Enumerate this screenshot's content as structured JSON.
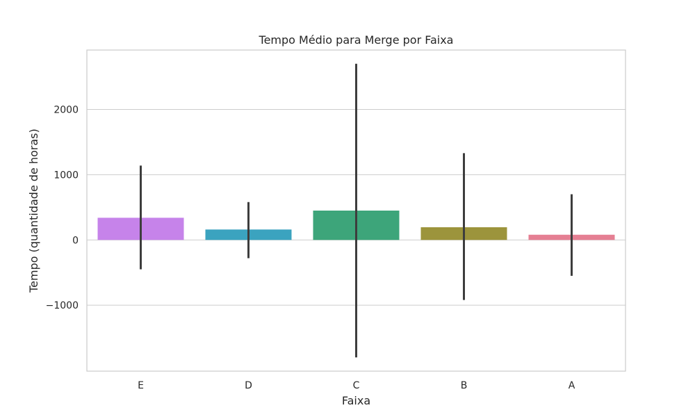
{
  "chart_data": {
    "type": "bar",
    "title": "Tempo Médio para Merge por Faixa",
    "xlabel": "Faixa",
    "ylabel": "Tempo (quantidade de horas)",
    "categories": [
      "E",
      "D",
      "C",
      "B",
      "A"
    ],
    "values": [
      340,
      160,
      450,
      195,
      80
    ],
    "error_low": [
      -450,
      -280,
      -1800,
      -920,
      -550
    ],
    "error_high": [
      1140,
      580,
      2700,
      1330,
      700
    ],
    "colors": [
      "#c683ea",
      "#3ba3bf",
      "#3da57a",
      "#9c943c",
      "#e57f93"
    ],
    "errorbar_color": "#3d3d3d",
    "ylim": [
      -2010,
      2910
    ],
    "yticks": [
      -1000,
      0,
      1000,
      2000
    ],
    "ytick_labels": [
      "−1000",
      "0",
      "1000",
      "2000"
    ],
    "grid": true,
    "legend": false
  }
}
